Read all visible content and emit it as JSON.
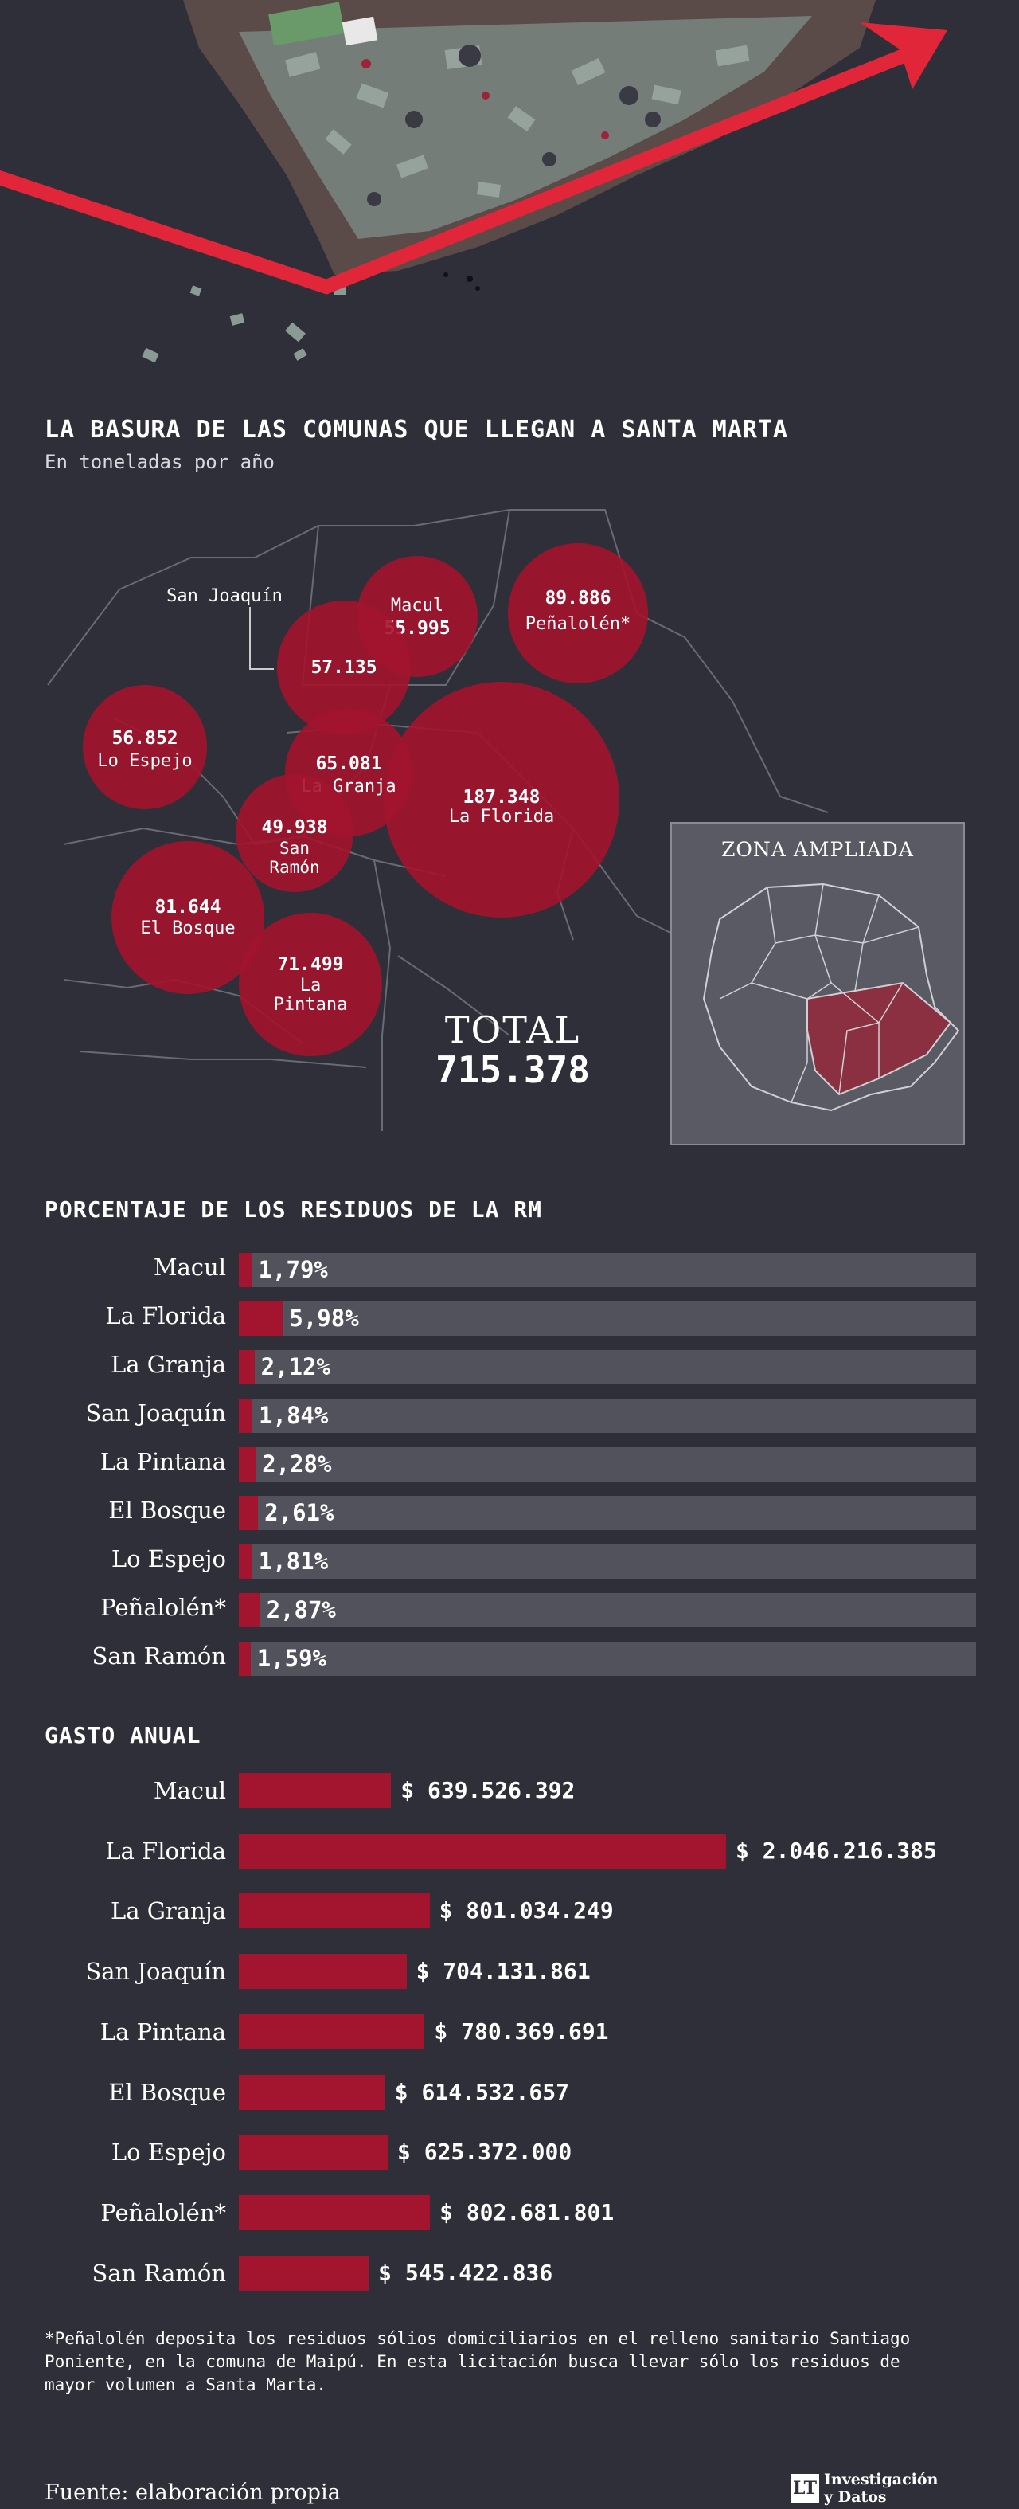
{
  "header": {
    "title": "LA BASURA DE LAS COMUNAS QUE LLEGAN A SANTA MARTA",
    "subtitle": "En toneladas por año"
  },
  "map": {
    "bubbles": [
      {
        "id": "macul",
        "name": "Macul",
        "value": "55.995"
      },
      {
        "id": "penalolen",
        "name": "Peñalolén*",
        "value": "89.886"
      },
      {
        "id": "san-joaquin",
        "name": "",
        "value": "57.135"
      },
      {
        "id": "lo-espejo",
        "name": "Lo Espejo",
        "value": "56.852"
      },
      {
        "id": "la-granja",
        "name": "La Granja",
        "value": "65.081"
      },
      {
        "id": "la-florida",
        "name": "La Florida",
        "value": "187.348"
      },
      {
        "id": "san-ramon",
        "name": "San Ramón",
        "value": "49.938"
      },
      {
        "id": "el-bosque",
        "name": "El Bosque",
        "value": "81.644"
      },
      {
        "id": "la-pintana",
        "name": "La Pintana",
        "value": "71.499"
      }
    ],
    "callout_label": "San Joaquín",
    "total_label": "TOTAL",
    "total_value": "715.378",
    "inset_title": "ZONA AMPLIADA"
  },
  "colors": {
    "accent": "#a3142e",
    "track": "#52525c",
    "background": "#2f2f39"
  },
  "chart_data": [
    {
      "type": "bar",
      "title": "PORCENTAJE DE LOS RESIDUOS DE LA RM",
      "categories": [
        "Macul",
        "La Florida",
        "La Granja",
        "San Joaquín",
        "La Pintana",
        "El Bosque",
        "Lo Espejo",
        "Peñalolén*",
        "San Ramón"
      ],
      "values": [
        1.79,
        5.98,
        2.12,
        1.84,
        2.28,
        2.61,
        1.81,
        2.87,
        1.59
      ],
      "labels": [
        "1,79%",
        "5,98%",
        "2,12%",
        "1,84%",
        "2,28%",
        "2,61%",
        "1,81%",
        "2,87%",
        "1,59%"
      ],
      "xlim": [
        0,
        100
      ]
    },
    {
      "type": "bar",
      "title": "GASTO ANUAL",
      "categories": [
        "Macul",
        "La Florida",
        "La Granja",
        "San Joaquín",
        "La Pintana",
        "El Bosque",
        "Lo Espejo",
        "Peñalolén*",
        "San Ramón"
      ],
      "values": [
        639526392,
        2046216385,
        801034249,
        704131861,
        780369691,
        614532657,
        625372000,
        802681801,
        545422836
      ],
      "labels": [
        "$ 639.526.392",
        "$ 2.046.216.385",
        "$ 801.034.249",
        "$ 704.131.861",
        "$ 780.369.691",
        "$ 614.532.657",
        "$ 625.372.000",
        "$ 802.681.801",
        "$ 545.422.836"
      ]
    }
  ],
  "footer": {
    "note": "*Peñalolén deposita los residuos sólios domiciliarios en el relleno sanitario Santiago Poniente, en la comuna de Maipú. En esta licitación busca llevar sólo los residuos de mayor volumen a Santa Marta.",
    "source": "Fuente: elaboración propia",
    "brand_logo": "LT",
    "brand_line1": "Investigación",
    "brand_line2": "y Datos"
  }
}
